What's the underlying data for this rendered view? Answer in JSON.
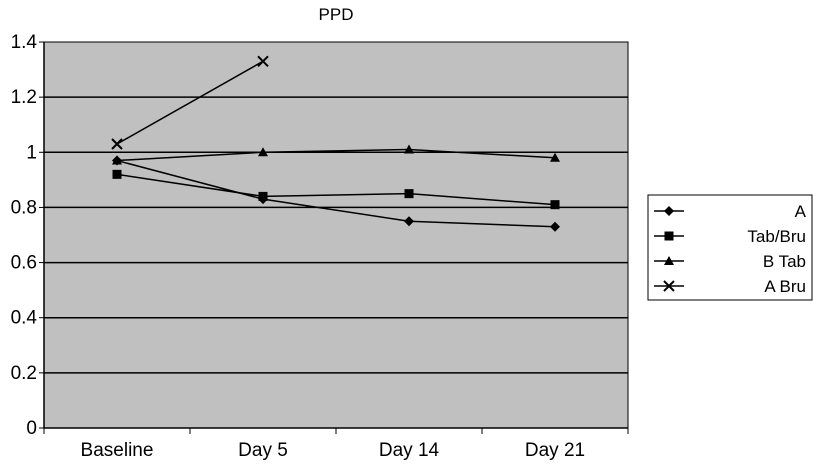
{
  "chart_data": {
    "type": "line",
    "title": "PPD",
    "xlabel": "",
    "ylabel": "",
    "categories": [
      "Baseline",
      "Day 5",
      "Day 14",
      "Day 21"
    ],
    "ylim": [
      0,
      1.4
    ],
    "yticks": [
      "0",
      "0.2",
      "0.4",
      "0.6",
      "0.8",
      "1",
      "1.2",
      "1.4"
    ],
    "grid": true,
    "plot_background": "#c0c0c0",
    "line_color": "#000000",
    "legend_position": "right",
    "series": [
      {
        "name": "A",
        "marker": "diamond",
        "values": [
          0.97,
          0.83,
          0.75,
          0.73
        ]
      },
      {
        "name": "Tab/Bru",
        "marker": "square",
        "values": [
          0.92,
          0.84,
          0.85,
          0.81
        ]
      },
      {
        "name": "B Tab",
        "marker": "triangle",
        "values": [
          0.97,
          1.0,
          1.01,
          0.98
        ]
      },
      {
        "name": "A Bru",
        "marker": "x",
        "values": [
          1.03,
          1.33,
          null,
          null
        ]
      }
    ]
  }
}
